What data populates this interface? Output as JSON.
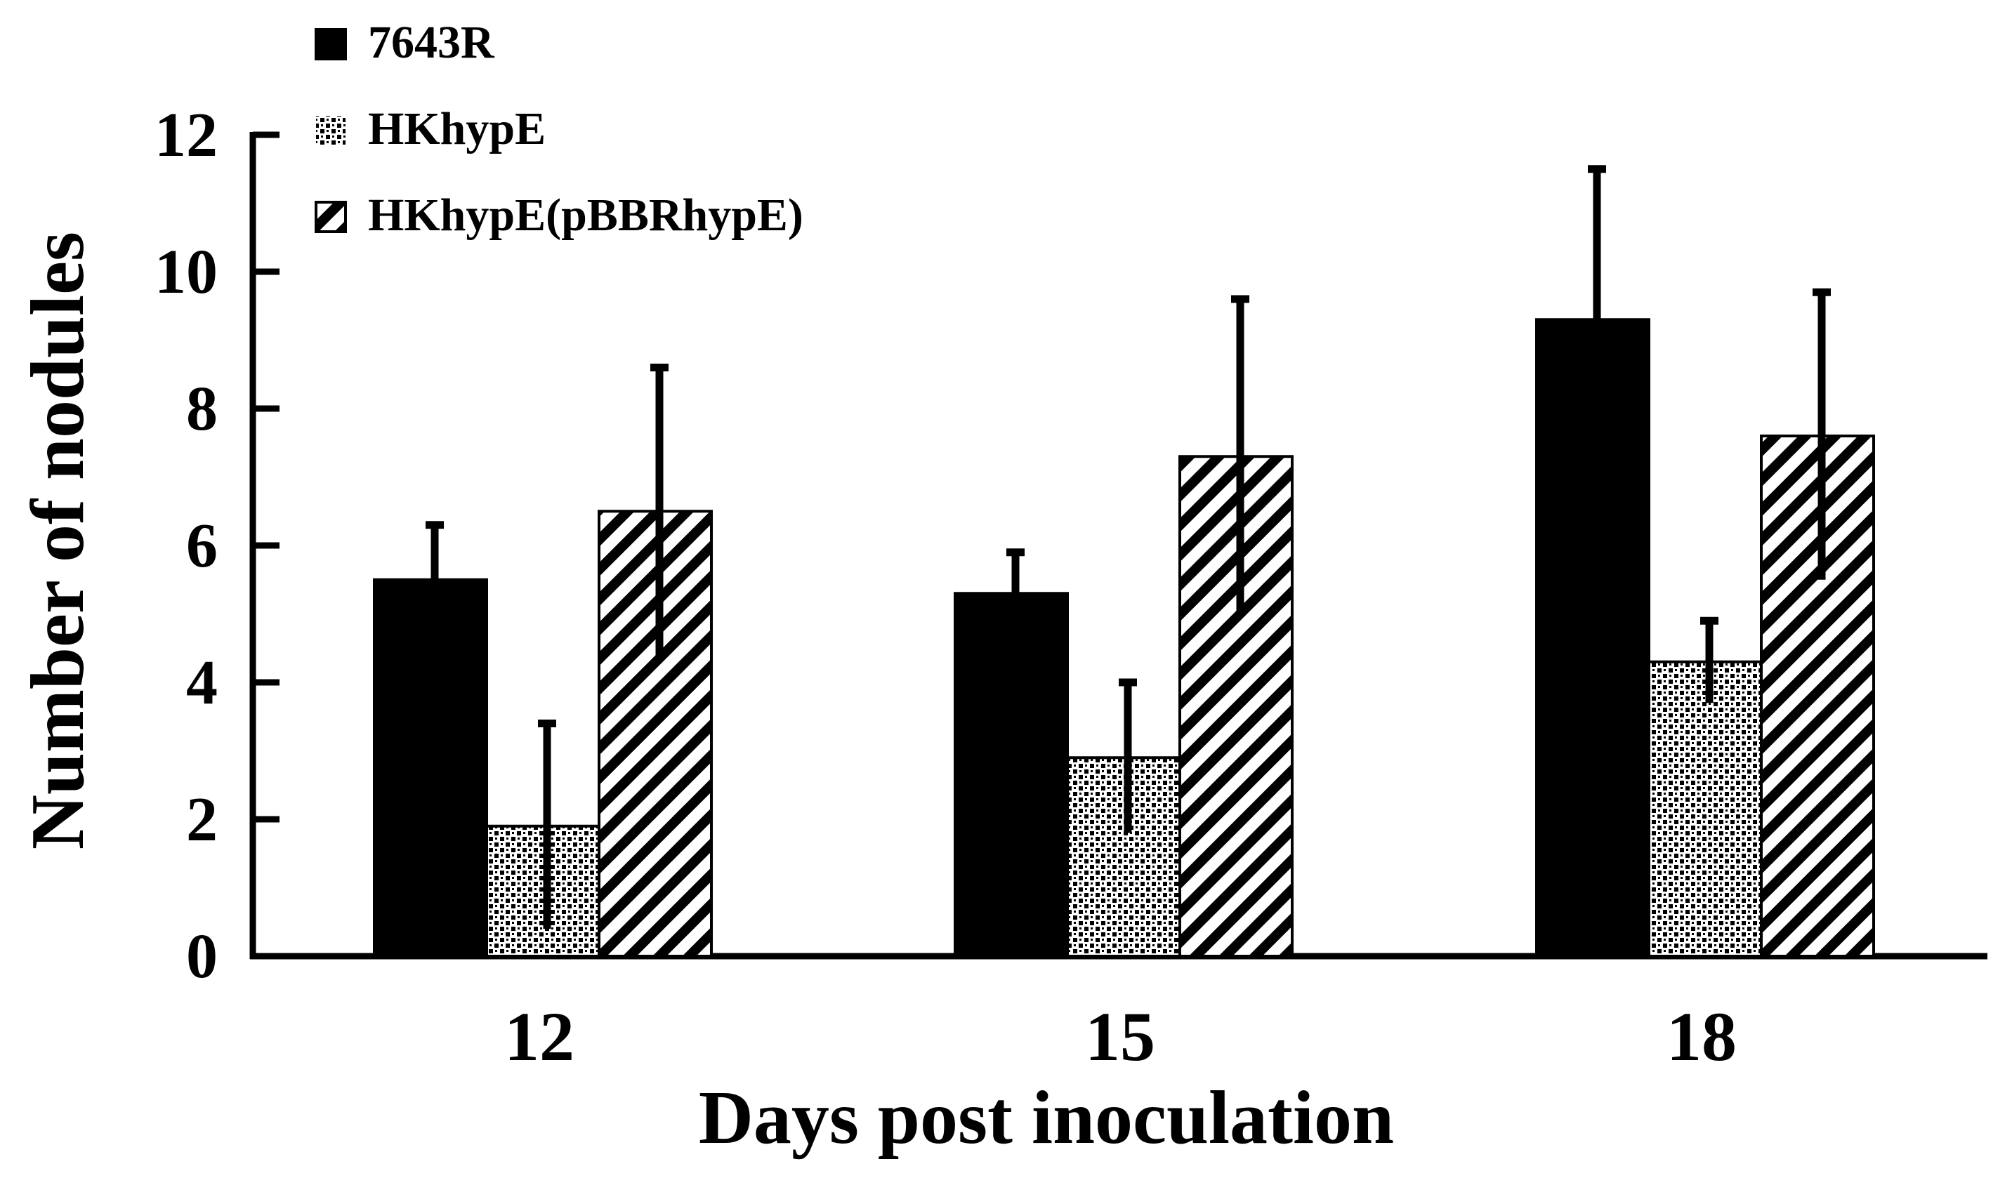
{
  "chart_data": {
    "type": "bar",
    "title": "",
    "xlabel": "Days post inoculation",
    "ylabel": "Number of nodules",
    "categories": [
      "12",
      "15",
      "18"
    ],
    "ylim": [
      0,
      12
    ],
    "yticks": [
      "0",
      "2",
      "4",
      "6",
      "8",
      "10",
      "12"
    ],
    "grid": false,
    "legend_position": "top-left",
    "series": [
      {
        "name": "7643R",
        "pattern": "solid",
        "values": [
          5.5,
          5.3,
          9.3
        ],
        "errors": [
          0.8,
          0.6,
          2.2
        ]
      },
      {
        "name": "HKhypE",
        "pattern": "dotted",
        "values": [
          1.9,
          2.9,
          4.3
        ],
        "errors": [
          1.5,
          1.1,
          0.6
        ]
      },
      {
        "name": "HKhypE(pBBRhypE)",
        "pattern": "diagonal-stripe",
        "values": [
          6.5,
          7.3,
          7.6
        ],
        "errors": [
          2.1,
          2.3,
          2.1
        ]
      }
    ],
    "colors": {
      "bar_fill": "#000000",
      "background": "#ffffff"
    }
  }
}
